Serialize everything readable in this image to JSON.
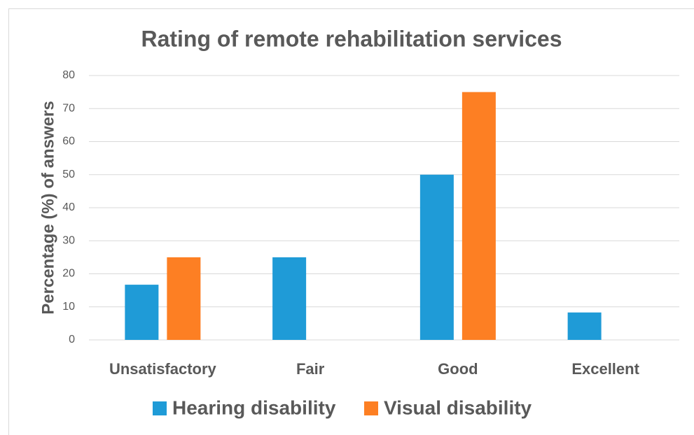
{
  "chart_data": {
    "type": "bar",
    "title": "Rating of remote rehabilitation services",
    "y_label": "Percentage (%) of answers",
    "categories": [
      "Unsatisfactory",
      "Fair",
      "Good",
      "Excellent"
    ],
    "series": [
      {
        "name": "Hearing disability",
        "color": "#1f9bd7",
        "values": [
          16.7,
          25,
          50,
          8.3
        ]
      },
      {
        "name": "Visual disability",
        "color": "#fd7f23",
        "values": [
          25,
          0,
          75,
          0
        ]
      }
    ],
    "ylim": [
      0,
      80
    ],
    "yticks": [
      0,
      10,
      20,
      30,
      40,
      50,
      60,
      70,
      80
    ],
    "grid": true,
    "legend": "bottom"
  }
}
